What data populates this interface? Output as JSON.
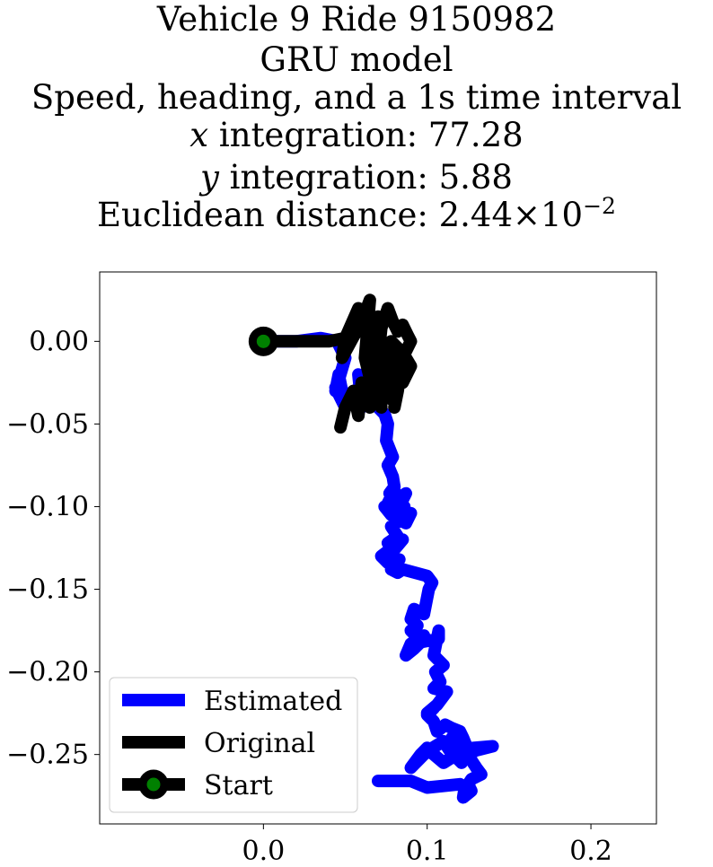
{
  "chart_data": {
    "type": "line",
    "title_lines": [
      {
        "text": "Vehicle 9 Ride 9150982"
      },
      {
        "text": "GRU model"
      },
      {
        "text": "Speed, heading, and a 1s time interval"
      },
      {
        "italic": "x",
        "text": " integration: 77.28"
      },
      {
        "italic": "y",
        "text": " integration: 5.88"
      },
      {
        "text": "Euclidean distance: 2.44×10",
        "sup": "−2"
      }
    ],
    "xlabel": "",
    "ylabel": "",
    "xlim": [
      -0.1,
      0.24
    ],
    "ylim": [
      -0.292,
      0.042
    ],
    "x_ticks": [
      0.0,
      0.1,
      0.2
    ],
    "x_tick_labels": [
      "0.0",
      "0.1",
      "0.2"
    ],
    "y_ticks": [
      0.0,
      -0.05,
      -0.1,
      -0.15,
      -0.2,
      -0.25
    ],
    "y_tick_labels": [
      "0.00",
      "−0.05",
      "−0.10",
      "−0.15",
      "−0.20",
      "−0.25"
    ],
    "grid": false,
    "legend_position": "bottom-left",
    "series": [
      {
        "name": "Estimated",
        "color": "#0000ff",
        "x": [
          0.0,
          0.02,
          0.035,
          0.045,
          0.05,
          0.044,
          0.046,
          0.05,
          0.044,
          0.048,
          0.055,
          0.06,
          0.058,
          0.065,
          0.07,
          0.074,
          0.076,
          0.075,
          0.079,
          0.076,
          0.079,
          0.08,
          0.077,
          0.079,
          0.08,
          0.076,
          0.08,
          0.083,
          0.087,
          0.084,
          0.086,
          0.074,
          0.078,
          0.087,
          0.09,
          0.078,
          0.082,
          0.076,
          0.08,
          0.085,
          0.072,
          0.076,
          0.083,
          0.078,
          0.082,
          0.085,
          0.1,
          0.103,
          0.101,
          0.099,
          0.098,
          0.092,
          0.09,
          0.094,
          0.09,
          0.095,
          0.098,
          0.09,
          0.087,
          0.092,
          0.096,
          0.107,
          0.107,
          0.104,
          0.11,
          0.105,
          0.108,
          0.104,
          0.112,
          0.106,
          0.1,
          0.104,
          0.1,
          0.104,
          0.106,
          0.111,
          0.115,
          0.12,
          0.122,
          0.124,
          0.118,
          0.115,
          0.117,
          0.121,
          0.118,
          0.114,
          0.11,
          0.1,
          0.09,
          0.096,
          0.1,
          0.104,
          0.11,
          0.118,
          0.128,
          0.14,
          0.128,
          0.126,
          0.13,
          0.133,
          0.127,
          0.125,
          0.127,
          0.122,
          0.123,
          0.12,
          0.1,
          0.09,
          0.07,
          0.07
        ],
        "y": [
          0.0,
          0.0,
          0.002,
          0.0,
          -0.01,
          -0.03,
          -0.02,
          -0.04,
          -0.028,
          -0.036,
          -0.03,
          -0.04,
          -0.02,
          -0.035,
          -0.04,
          -0.044,
          -0.05,
          -0.06,
          -0.07,
          -0.075,
          -0.082,
          -0.088,
          -0.092,
          -0.095,
          -0.09,
          -0.098,
          -0.1,
          -0.095,
          -0.092,
          -0.098,
          -0.1,
          -0.1,
          -0.105,
          -0.11,
          -0.104,
          -0.112,
          -0.118,
          -0.122,
          -0.126,
          -0.12,
          -0.13,
          -0.134,
          -0.132,
          -0.138,
          -0.14,
          -0.138,
          -0.142,
          -0.146,
          -0.15,
          -0.16,
          -0.165,
          -0.162,
          -0.168,
          -0.172,
          -0.175,
          -0.18,
          -0.178,
          -0.183,
          -0.19,
          -0.186,
          -0.182,
          -0.18,
          -0.175,
          -0.19,
          -0.196,
          -0.2,
          -0.206,
          -0.21,
          -0.212,
          -0.22,
          -0.225,
          -0.222,
          -0.226,
          -0.23,
          -0.236,
          -0.232,
          -0.234,
          -0.236,
          -0.24,
          -0.245,
          -0.246,
          -0.24,
          -0.25,
          -0.255,
          -0.252,
          -0.248,
          -0.242,
          -0.248,
          -0.258,
          -0.25,
          -0.246,
          -0.25,
          -0.255,
          -0.25,
          -0.246,
          -0.245,
          -0.248,
          -0.252,
          -0.258,
          -0.262,
          -0.265,
          -0.268,
          -0.272,
          -0.276,
          -0.27,
          -0.268,
          -0.27,
          -0.266,
          -0.266,
          -0.266
        ]
      },
      {
        "name": "Original",
        "color": "#000000",
        "x": [
          0.0,
          0.02,
          0.04,
          0.055,
          0.06,
          0.058,
          0.05,
          0.048,
          0.06,
          0.065,
          0.062,
          0.067,
          0.07,
          0.07,
          0.065,
          0.068,
          0.072,
          0.076,
          0.079,
          0.082,
          0.085,
          0.088,
          0.09,
          0.085,
          0.082,
          0.08,
          0.083,
          0.078,
          0.075,
          0.078,
          0.083,
          0.087,
          0.09,
          0.085,
          0.079,
          0.077,
          0.074,
          0.07,
          0.072,
          0.068,
          0.063,
          0.06,
          0.058,
          0.055,
          0.05,
          0.047
        ],
        "y": [
          0.0,
          0.0,
          0.0,
          0.003,
          0.01,
          0.02,
          0.002,
          -0.01,
          0.012,
          0.025,
          -0.01,
          -0.03,
          0.0,
          0.015,
          -0.04,
          -0.03,
          0.008,
          0.02,
          0.012,
          0.006,
          0.01,
          0.004,
          0.0,
          -0.01,
          -0.03,
          -0.04,
          -0.02,
          -0.035,
          -0.01,
          0.0,
          -0.005,
          -0.01,
          -0.015,
          -0.025,
          -0.01,
          -0.02,
          -0.03,
          -0.01,
          -0.04,
          -0.02,
          -0.035,
          -0.025,
          -0.045,
          -0.03,
          -0.04,
          -0.052
        ]
      }
    ],
    "start": {
      "x": 0.0,
      "y": 0.0,
      "edge_color": "#000000",
      "face_color": "#008000"
    },
    "legend": [
      {
        "label": "Estimated",
        "color": "#0000ff",
        "kind": "line"
      },
      {
        "label": "Original",
        "color": "#000000",
        "kind": "line"
      },
      {
        "label": "Start",
        "color": "#000000",
        "marker_face": "#008000",
        "kind": "line-marker"
      }
    ]
  }
}
